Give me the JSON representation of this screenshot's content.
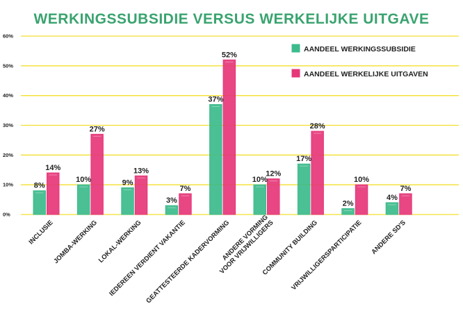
{
  "chart_data": {
    "type": "bar",
    "title": "WERKINGSSUBSIDIE VERSUS WERKELIJKE UITGAVE",
    "categories": [
      "INCLUSIE",
      "JOMBA-WERKING",
      "LOKAL-WERKING",
      "IEDEREEN VERDIENT VAKANTIE",
      "GEATTESTEERDE KADERVORMING",
      [
        "ANDERE VORMING",
        "VOOR VRIJWILLIGERS"
      ],
      "COMMUNITY BUILDING",
      "VRIJWILLIGERSPARTICIPATIE",
      "ANDERE SD'S"
    ],
    "series": [
      {
        "name": "AANDEEL WERKINGSSUBSIDIE",
        "color": "#3dbb8c",
        "values": [
          8,
          10,
          9,
          3,
          37,
          10,
          17,
          2,
          4
        ],
        "labels": [
          "8%",
          "10%",
          "9%",
          "3%",
          "37%",
          "10%",
          "17%",
          "2%",
          "4%"
        ]
      },
      {
        "name": "AANDEEL WERKELIJKE UITGAVEN",
        "color": "#e6377a",
        "values": [
          14,
          27,
          13,
          7,
          52,
          12,
          28,
          10,
          7
        ],
        "labels": [
          "14%",
          "27%",
          "13%",
          "7%",
          "52%",
          "12%",
          "28%",
          "10%",
          "7%"
        ]
      }
    ],
    "y_ticks": [
      "0%",
      "10%",
      "20%",
      "30%",
      "40%",
      "50%",
      "60%"
    ],
    "ylim": [
      0,
      60
    ],
    "grid": true,
    "grid_color": "#f2df2e",
    "title_color": "#3aa36f",
    "legend_position": "top-right"
  }
}
